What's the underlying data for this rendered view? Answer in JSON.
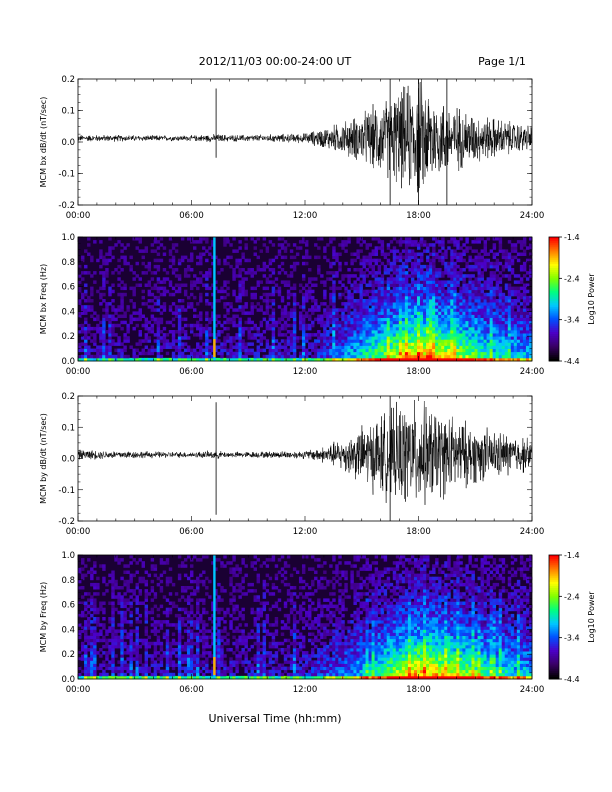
{
  "header": {
    "date_range": "2012/11/03  00:00-24:00 UT",
    "page": "Page 1/1"
  },
  "footer": {
    "xlabel": "Universal Time (hh:mm)"
  },
  "colors": {
    "trace": "#000000",
    "spectrogram_background": "#1a0033",
    "colorbar": [
      "#000000",
      "#3a0066",
      "#4b00c8",
      "#0050ff",
      "#00c8ff",
      "#00ff80",
      "#80ff00",
      "#ffff00",
      "#ff8000",
      "#ff0000"
    ]
  },
  "chart_data": [
    {
      "type": "line",
      "panel": "bx-dbdt",
      "ylabel": "MCM bx dB/dt (nT/sec)",
      "x_ticks": [
        "00:00",
        "06:00",
        "12:00",
        "18:00",
        "24:00"
      ],
      "y_ticks": [
        "0.2",
        "0.1",
        "0.0",
        "-0.1",
        "-0.2"
      ],
      "xlim": [
        0,
        24
      ],
      "ylim": [
        -0.2,
        0.2
      ],
      "series": [
        {
          "x": [
            0,
            2,
            4,
            6,
            7.3,
            8,
            10,
            12,
            13,
            14,
            15,
            16,
            16.5,
            17,
            17.5,
            18,
            18.5,
            19,
            20,
            21,
            22,
            23,
            24
          ],
          "amplitude": [
            0.008,
            0.008,
            0.007,
            0.007,
            0.01,
            0.008,
            0.009,
            0.012,
            0.025,
            0.04,
            0.06,
            0.09,
            0.1,
            0.12,
            0.13,
            0.15,
            0.13,
            0.1,
            0.08,
            0.06,
            0.05,
            0.04,
            0.03
          ]
        }
      ],
      "spikes": [
        {
          "x": 7.3,
          "ymin": -0.05,
          "ymax": 0.17
        },
        {
          "x": 16.5,
          "ymin": -0.2,
          "ymax": 0.2
        },
        {
          "x": 18,
          "ymin": -0.2,
          "ymax": 0.2
        },
        {
          "x": 19.5,
          "ymin": -0.2,
          "ymax": 0.2
        }
      ]
    },
    {
      "type": "heatmap",
      "panel": "bx-spectrogram",
      "ylabel": "MCM bx Freq (Hz)",
      "x_ticks": [
        "00:00",
        "06:00",
        "12:00",
        "18:00",
        "24:00"
      ],
      "y_ticks": [
        "1.0",
        "0.8",
        "0.6",
        "0.4",
        "0.2",
        "0.0"
      ],
      "xlim": [
        0,
        24
      ],
      "ylim": [
        0,
        1
      ],
      "colorbar": {
        "label": "Log10 Power",
        "ticks": [
          "-1.4",
          "-2.4",
          "-3.4",
          "-4.4"
        ],
        "range": [
          -4.4,
          -1.4
        ]
      },
      "activity": {
        "x": [
          0,
          3,
          6,
          9,
          12,
          13,
          14,
          15,
          16,
          17,
          18,
          19,
          20,
          21,
          22,
          23,
          24
        ],
        "level": [
          0.1,
          0.1,
          0.12,
          0.12,
          0.15,
          0.22,
          0.32,
          0.45,
          0.6,
          0.75,
          0.85,
          0.8,
          0.7,
          0.6,
          0.5,
          0.42,
          0.38
        ]
      },
      "vertical_line": {
        "x": 7.2
      }
    },
    {
      "type": "line",
      "panel": "by-dbdt",
      "ylabel": "MCM by dB/dt (nT/sec)",
      "x_ticks": [
        "00:00",
        "06:00",
        "12:00",
        "18:00",
        "24:00"
      ],
      "y_ticks": [
        "0.2",
        "0.1",
        "0.0",
        "-0.1",
        "-0.2"
      ],
      "xlim": [
        0,
        24
      ],
      "ylim": [
        -0.2,
        0.2
      ],
      "series": [
        {
          "x": [
            0,
            2,
            4,
            6,
            7.3,
            8,
            10,
            12,
            13,
            14,
            15,
            16,
            16.5,
            17,
            17.5,
            18,
            18.5,
            19,
            20,
            21,
            22,
            23,
            24
          ],
          "amplitude": [
            0.012,
            0.01,
            0.008,
            0.007,
            0.01,
            0.007,
            0.008,
            0.01,
            0.02,
            0.04,
            0.07,
            0.1,
            0.11,
            0.12,
            0.13,
            0.13,
            0.12,
            0.11,
            0.09,
            0.07,
            0.06,
            0.05,
            0.04
          ]
        }
      ],
      "spikes": [
        {
          "x": 7.3,
          "ymin": -0.18,
          "ymax": 0.18
        },
        {
          "x": 16.5,
          "ymin": -0.2,
          "ymax": 0.2
        }
      ]
    },
    {
      "type": "heatmap",
      "panel": "by-spectrogram",
      "ylabel": "MCM by Freq (Hz)",
      "x_ticks": [
        "00:00",
        "06:00",
        "12:00",
        "18:00",
        "24:00"
      ],
      "y_ticks": [
        "1.0",
        "0.8",
        "0.6",
        "0.4",
        "0.2",
        "0.0"
      ],
      "xlim": [
        0,
        24
      ],
      "ylim": [
        0,
        1
      ],
      "colorbar": {
        "label": "Log10 Power",
        "ticks": [
          "-1.4",
          "-2.4",
          "-3.4",
          "-4.4"
        ],
        "range": [
          -4.4,
          -1.4
        ]
      },
      "activity": {
        "x": [
          0,
          3,
          6,
          9,
          12,
          13,
          14,
          15,
          16,
          17,
          18,
          19,
          20,
          21,
          22,
          23,
          24
        ],
        "level": [
          0.12,
          0.12,
          0.13,
          0.13,
          0.16,
          0.22,
          0.3,
          0.42,
          0.55,
          0.72,
          0.85,
          0.82,
          0.72,
          0.62,
          0.52,
          0.45,
          0.4
        ]
      },
      "vertical_line": {
        "x": 7.2
      }
    }
  ]
}
